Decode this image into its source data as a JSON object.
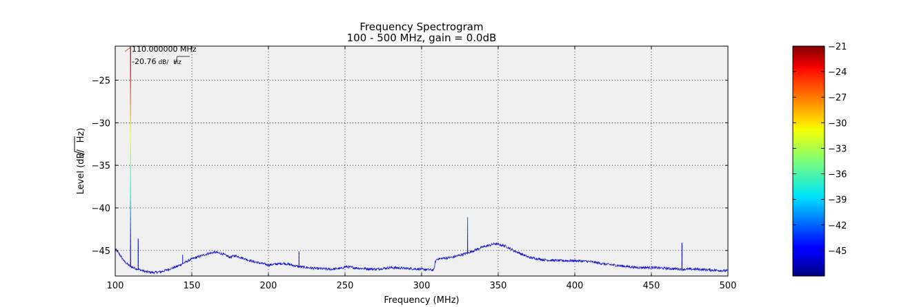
{
  "chart_data": {
    "type": "line",
    "title": "Frequency Spectrogram",
    "subtitle": "100 - 500 MHz, gain = 0.0dB",
    "xlabel": "Frequency (MHz)",
    "ylabel_prefix": "Level (dB/",
    "ylabel_radicand": "Hz",
    "ylabel_suffix": ")",
    "xlim": [
      100,
      500
    ],
    "ylim": [
      -48,
      -21
    ],
    "xticks": [
      100,
      150,
      200,
      250,
      300,
      350,
      400,
      450,
      500
    ],
    "yticks": [
      -25,
      -30,
      -35,
      -40,
      -45
    ],
    "grid": true,
    "plot_background": "#f0f0f0",
    "colormap": "jet",
    "colorbar": {
      "min": -48,
      "max": -21,
      "ticks": [
        -21,
        -24,
        -27,
        -30,
        -33,
        -36,
        -39,
        -42,
        -45
      ]
    },
    "annotation": {
      "frequency_text": "110.000000 MHz",
      "level_value": "-20.76",
      "level_unit_prefix": "dB/",
      "level_unit_radicand": "Hz",
      "peak_x": 110,
      "peak_y": -20.76
    },
    "series": [
      {
        "baseline": {
          "x": [
            100,
            103,
            106,
            110,
            115,
            120,
            125,
            130,
            140,
            150,
            160,
            165,
            170,
            175,
            178,
            180,
            185,
            190,
            200,
            210,
            215,
            220,
            230,
            240,
            248,
            250,
            255,
            260,
            270,
            280,
            290,
            300,
            308,
            309,
            310,
            320,
            330,
            340,
            348,
            355,
            360,
            370,
            380,
            390,
            400,
            410,
            420,
            430,
            440,
            450,
            460,
            470,
            480,
            490,
            500
          ],
          "y": [
            -44.8,
            -45.5,
            -46.3,
            -46.9,
            -47.2,
            -47.5,
            -47.6,
            -47.5,
            -46.9,
            -46.0,
            -45.4,
            -45.2,
            -45.4,
            -45.8,
            -45.6,
            -45.7,
            -46.0,
            -46.3,
            -46.7,
            -46.5,
            -46.7,
            -46.9,
            -47.1,
            -47.2,
            -47.1,
            -46.9,
            -47.0,
            -47.1,
            -47.2,
            -47.0,
            -47.1,
            -47.2,
            -47.3,
            -46.3,
            -46.0,
            -45.8,
            -45.3,
            -44.6,
            -44.2,
            -44.5,
            -45.0,
            -45.8,
            -46.1,
            -46.2,
            -46.2,
            -46.3,
            -46.6,
            -46.8,
            -47.0,
            -47.0,
            -47.1,
            -47.2,
            -47.2,
            -47.3,
            -47.4
          ]
        },
        "noise_amplitude": 0.15,
        "spikes": [
          {
            "x": 110,
            "y": -20.76
          },
          {
            "x": 115,
            "y": -43.6
          },
          {
            "x": 144,
            "y": -45.5
          },
          {
            "x": 220,
            "y": -45.1
          },
          {
            "x": 330,
            "y": -41.1
          },
          {
            "x": 470,
            "y": -44.1
          }
        ]
      }
    ]
  }
}
